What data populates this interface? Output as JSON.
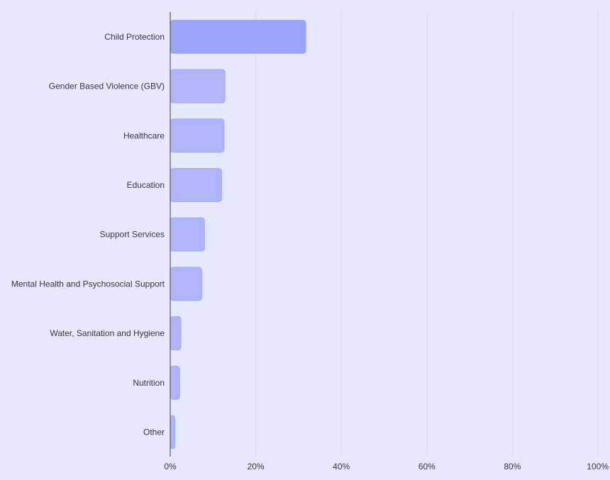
{
  "colors": {
    "background": "#e6e8fc",
    "bar_highlight": "#9ba3fb",
    "bar_default": "#afb5fb",
    "bar_stroke": "#a3aaf6",
    "gridline": "#d6d9f3",
    "axis": "#3a3d4a",
    "text": "#333844"
  },
  "chart_data": {
    "type": "bar",
    "orientation": "horizontal",
    "categories": [
      "Child Protection",
      "Gender Based Violence (GBV)",
      "Healthcare",
      "Education",
      "Support Services",
      "Mental Health and Psychosocial Support",
      "Water, Sanitation and Hygiene",
      "Nutrition",
      "Other"
    ],
    "values": [
      31.7,
      12.8,
      12.6,
      12.0,
      8.0,
      7.4,
      2.5,
      2.2,
      1.1
    ],
    "highlight_index": 0,
    "xlim": [
      0,
      100
    ],
    "x_ticks": [
      0,
      20,
      40,
      60,
      80,
      100
    ],
    "x_tick_labels": [
      "0%",
      "20%",
      "40%",
      "60%",
      "80%",
      "100%"
    ],
    "title": "",
    "xlabel": "",
    "ylabel": "",
    "grid": "vertical",
    "legend": "none"
  }
}
